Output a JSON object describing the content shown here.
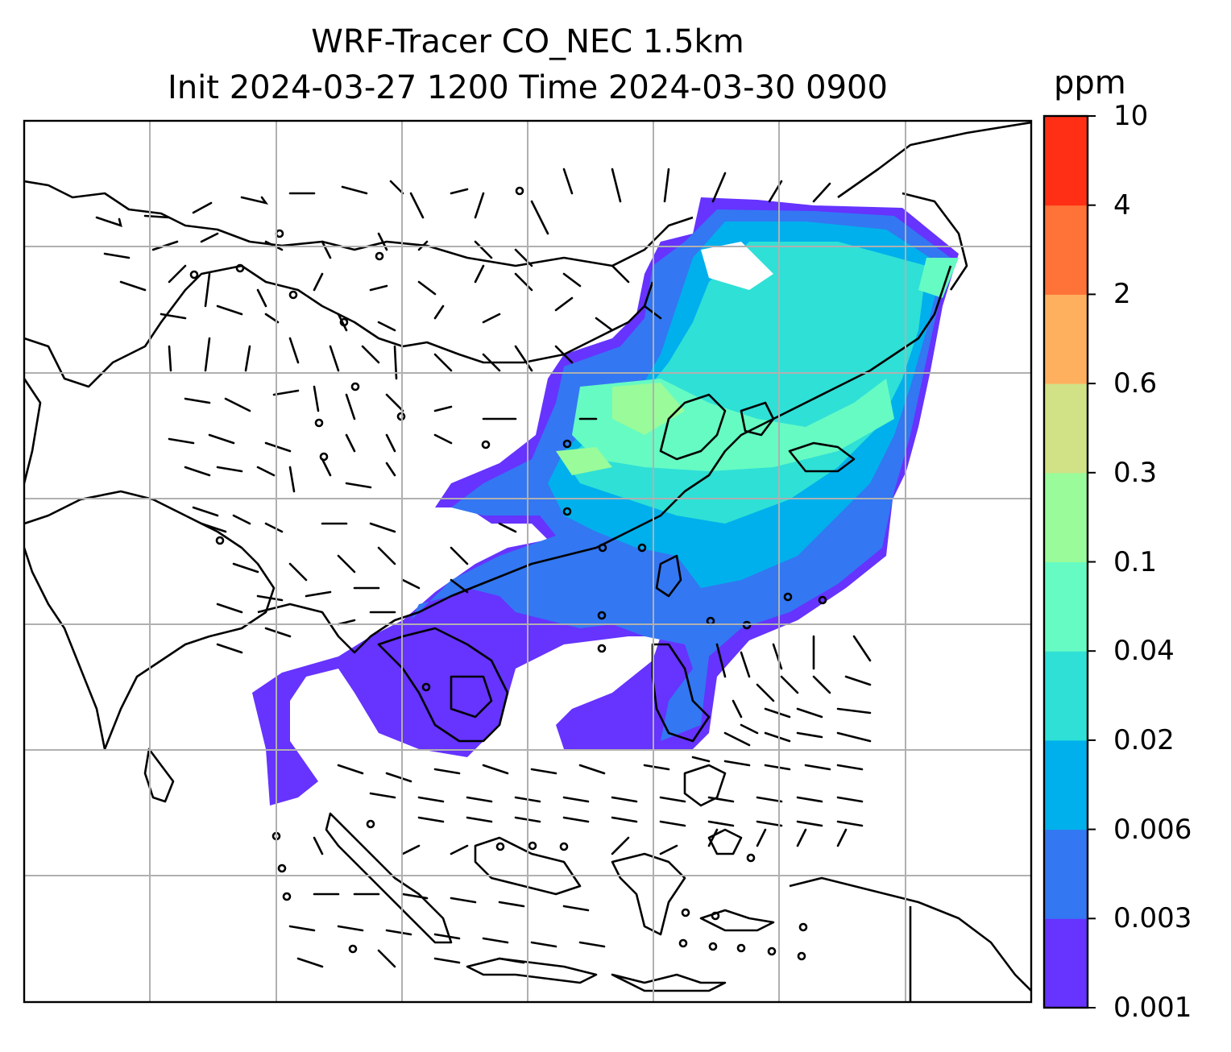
{
  "title": {
    "line1": "WRF-Tracer CO_NEC 1.5km",
    "line2": "Init 2024-03-27 1200 Time 2024-03-30 0900"
  },
  "colorbar": {
    "unit": "ppm",
    "levels": [
      "0.001",
      "0.003",
      "0.006",
      "0.02",
      "0.04",
      "0.1",
      "0.3",
      "0.6",
      "2",
      "4",
      "10"
    ],
    "colors": [
      "#6633ff",
      "#3377f2",
      "#00b0ec",
      "#2fe0d6",
      "#66fbc3",
      "#99fb99",
      "#d1e185",
      "#feb05e",
      "#ff7238",
      "#ff2f15"
    ]
  },
  "map": {
    "coastline_color": "#000000",
    "gridline_color": "#b0b0b0",
    "wind_barb_color": "#000000"
  }
}
